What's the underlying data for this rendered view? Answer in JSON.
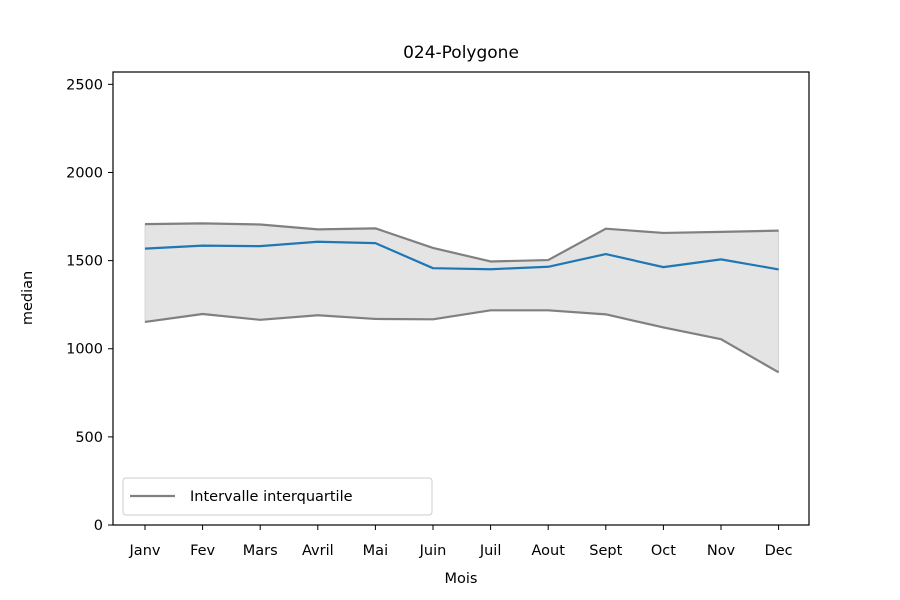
{
  "chart_data": {
    "type": "line",
    "title": "024-Polygone",
    "xlabel": "Mois",
    "ylabel": "median",
    "categories": [
      "Janv",
      "Fev",
      "Mars",
      "Avril",
      "Mai",
      "Juin",
      "Juil",
      "Aout",
      "Sept",
      "Oct",
      "Nov",
      "Dec"
    ],
    "series": [
      {
        "key": "median",
        "color": "#1f77b4",
        "values": [
          1568,
          1585,
          1582,
          1607,
          1599,
          1457,
          1451,
          1465,
          1537,
          1463,
          1507,
          1450
        ]
      },
      {
        "key": "q3",
        "color": "#808080",
        "values": [
          1707,
          1711,
          1705,
          1677,
          1683,
          1572,
          1495,
          1503,
          1681,
          1657,
          1663,
          1670
        ]
      },
      {
        "key": "q1",
        "color": "#808080",
        "values": [
          1152,
          1197,
          1164,
          1190,
          1169,
          1167,
          1218,
          1218,
          1195,
          1121,
          1054,
          866
        ]
      }
    ],
    "band": {
      "between": [
        "q1",
        "q3"
      ],
      "color": "#e4e4e4"
    },
    "yticks": [
      0,
      500,
      1000,
      1500,
      2000,
      2500
    ],
    "ylim": [
      0,
      2570
    ],
    "grid": false,
    "legend": {
      "position": "lower-left",
      "label": "Intervalle interquartile",
      "color": "#808080"
    }
  }
}
